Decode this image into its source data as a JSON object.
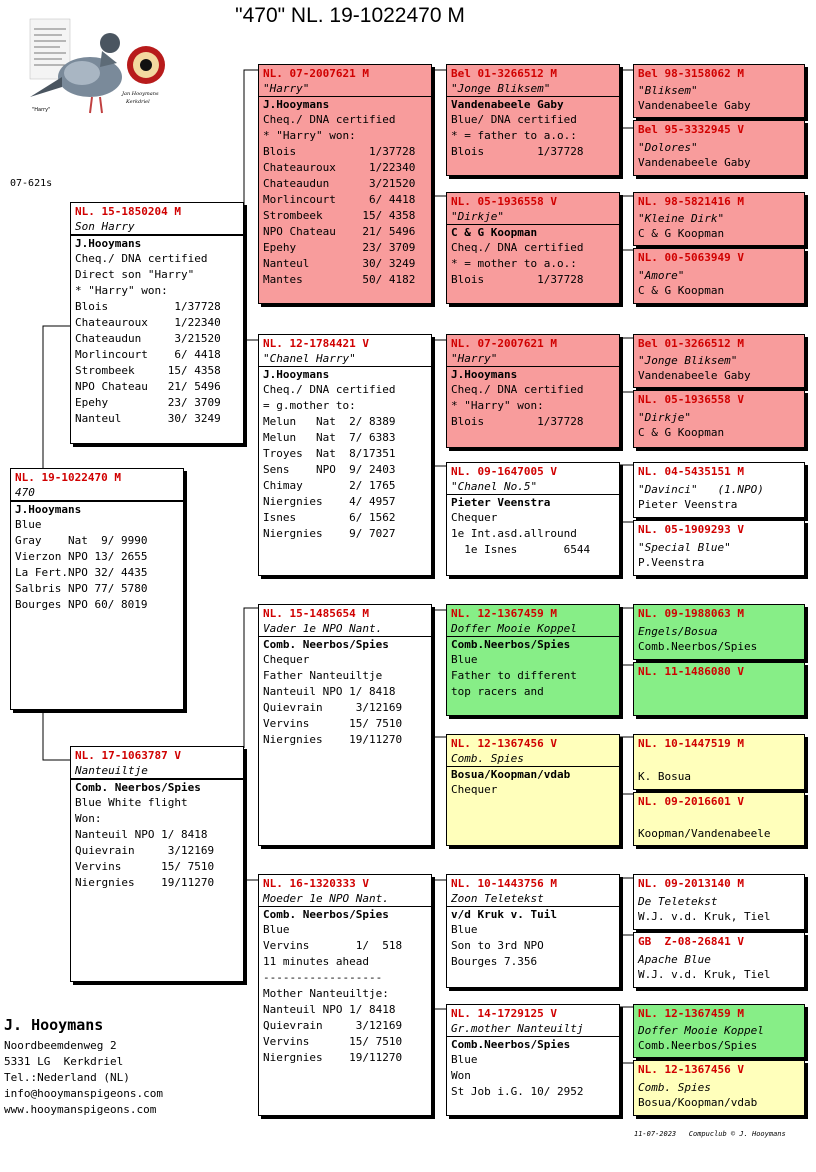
{
  "title": "\"470\"  NL. 19-1022470 M",
  "logo": {
    "caption_left": "\"Harry\"",
    "caption_right1": "Jan Hooymans",
    "caption_right2": "Kerkdriel"
  },
  "code": "07-621s",
  "cards": [
    {
      "ring": "NL. 19-1022470 M",
      "name": "470",
      "owner": "J.Hooymans",
      "lines": [
        "Blue",
        "Gray    Nat  9/ 9990",
        "Vierzon NPO 13/ 2655",
        "La Fert.NPO 32/ 4435",
        "Salbris NPO 77/ 5780",
        "Bourges NPO 60/ 8019"
      ]
    },
    {
      "ring": "NL. 15-1850204 M",
      "name": "Son Harry",
      "owner": "J.Hooymans",
      "lines": [
        "Cheq./ DNA certified",
        "Direct son \"Harry\"",
        "* \"Harry\" won:",
        "Blois          1/37728",
        "Chateauroux    1/22340",
        "Chateaudun     3/21520",
        "Morlincourt    6/ 4418",
        "Strombeek     15/ 4358",
        "NPO Chateau   21/ 5496",
        "Epehy         23/ 3709",
        "Nanteul       30/ 3249"
      ]
    },
    {
      "ring": "NL. 17-1063787 V",
      "name": "Nanteuiltje",
      "owner": "Comb. Neerbos/Spies",
      "lines": [
        "Blue White flight",
        "Won:",
        "Nanteuil NPO 1/ 8418",
        "Quievrain     3/12169",
        "Vervins      15/ 7510",
        "Niergnies    19/11270"
      ]
    },
    {
      "ring": "NL. 07-2007621 M",
      "name": "\"Harry\"",
      "owner": "J.Hooymans",
      "lines": [
        "Cheq./ DNA certified",
        "* \"Harry\" won:",
        "Blois           1/37728",
        "Chateauroux     1/22340",
        "Chateaudun      3/21520",
        "Morlincourt     6/ 4418",
        "Strombeek      15/ 4358",
        "NPO Chateau    21/ 5496",
        "Epehy          23/ 3709",
        "Nanteul        30/ 3249",
        "Mantes         50/ 4182"
      ]
    },
    {
      "ring": "NL. 12-1784421 V",
      "name": "\"Chanel Harry\"",
      "owner": "J.Hooymans",
      "lines": [
        "Cheq./ DNA certified",
        "= g.mother to:",
        "Melun   Nat  2/ 8389",
        "Melun   Nat  7/ 6383",
        "Troyes  Nat  8/17351",
        "Sens    NPO  9/ 2403",
        "Chimay       2/ 1765",
        "Niergnies    4/ 4957",
        "Isnes        6/ 1562",
        "Niergnies    9/ 7027"
      ]
    },
    {
      "ring": "NL. 15-1485654 M",
      "name": "Vader 1e NPO Nant.",
      "owner": "Comb. Neerbos/Spies",
      "lines": [
        "Chequer",
        "Father Nanteuiltje",
        "Nanteuil NPO 1/ 8418",
        "Quievrain     3/12169",
        "Vervins      15/ 7510",
        "Niergnies    19/11270"
      ]
    },
    {
      "ring": "NL. 16-1320333 V",
      "name": "Moeder 1e NPO Nant.",
      "owner": "Comb. Neerbos/Spies",
      "lines": [
        "Blue",
        "Vervins       1/  518",
        "11 minutes ahead",
        "------------------",
        "Mother Nanteuiltje:",
        "Nanteuil NPO 1/ 8418",
        "Quievrain     3/12169",
        "Vervins      15/ 7510",
        "Niergnies    19/11270"
      ]
    },
    {
      "ring": "Bel 01-3266512 M",
      "name": "\"Jonge Bliksem\"",
      "owner": "Vandenabeele Gaby",
      "lines": [
        "Blue/ DNA certified",
        "* = father to a.o.:",
        "Blois        1/37728"
      ]
    },
    {
      "ring": "NL. 05-1936558 V",
      "name": "\"Dirkje\"",
      "owner": "C & G Koopman",
      "lines": [
        "Cheq./ DNA certified",
        "* = mother to a.o.:",
        "Blois        1/37728"
      ]
    },
    {
      "ring": "NL. 07-2007621 M",
      "name": "\"Harry\"",
      "owner": "J.Hooymans",
      "lines": [
        "Cheq./ DNA certified",
        "* \"Harry\" won:",
        "Blois        1/37728"
      ]
    },
    {
      "ring": "NL. 09-1647005 V",
      "name": "\"Chanel No.5\"",
      "owner": "Pieter Veenstra",
      "lines": [
        "Chequer",
        "1e Int.asd.allround",
        "  1e Isnes       6544"
      ]
    },
    {
      "ring": "NL. 12-1367459 M",
      "name": "Doffer Mooie Koppel",
      "owner": "Comb.Neerbos/Spies",
      "lines": [
        "Blue",
        "Father to different",
        "top racers and"
      ]
    },
    {
      "ring": "NL. 12-1367456 V",
      "name": "Comb. Spies",
      "owner": "Bosua/Koopman/vdab",
      "lines": [
        "Chequer"
      ]
    },
    {
      "ring": "NL. 10-1443756 M",
      "name": "Zoon Teletekst",
      "owner": "v/d Kruk v. Tuil",
      "lines": [
        "Blue",
        "Son to 3rd NPO",
        "Bourges 7.356"
      ]
    },
    {
      "ring": "NL. 14-1729125 V",
      "name": "Gr.mother Nanteuiltj",
      "owner": "Comb.Neerbos/Spies",
      "lines": [
        "Blue",
        "Won",
        "St Job i.G. 10/ 2952"
      ]
    },
    {
      "ring": "Bel 98-3158062 M",
      "name": "\"Bliksem\"",
      "owner": "Vandenabeele Gaby",
      "lines": []
    },
    {
      "ring": "Bel 95-3332945 V",
      "name": "\"Dolores\"",
      "owner": "Vandenabeele Gaby",
      "lines": []
    },
    {
      "ring": "NL. 98-5821416 M",
      "name": "\"Kleine Dirk\"",
      "owner": "C & G Koopman",
      "lines": []
    },
    {
      "ring": "NL. 00-5063949 V",
      "name": "\"Amore\"",
      "owner": "C & G Koopman",
      "lines": []
    },
    {
      "ring": "Bel 01-3266512 M",
      "name": "\"Jonge Bliksem\"",
      "owner": "Vandenabeele Gaby",
      "lines": []
    },
    {
      "ring": "NL. 05-1936558 V",
      "name": "\"Dirkje\"",
      "owner": "C & G Koopman",
      "lines": []
    },
    {
      "ring": "NL. 04-5435151 M",
      "name": "\"Davinci\"   (1.NPO)",
      "owner": "Pieter Veenstra",
      "lines": []
    },
    {
      "ring": "NL. 05-1909293 V",
      "name": "\"Special Blue\"",
      "owner": "P.Veenstra",
      "lines": []
    },
    {
      "ring": "NL. 09-1988063 M",
      "name": "Engels/Bosua",
      "owner": "Comb.Neerbos/Spies",
      "lines": []
    },
    {
      "ring": "NL. 11-1486080 V",
      "name": "",
      "owner": "",
      "lines": []
    },
    {
      "ring": "NL. 10-1447519 M",
      "name": "",
      "owner": "K. Bosua",
      "lines": []
    },
    {
      "ring": "NL. 09-2016601 V",
      "name": "",
      "owner": "Koopman/Vandenabeele",
      "lines": []
    },
    {
      "ring": "NL. 09-2013140 M",
      "name": "De Teletekst",
      "owner": "W.J. v.d. Kruk, Tiel",
      "lines": []
    },
    {
      "ring": "GB  Z-08-26841 V",
      "name": "Apache Blue",
      "owner": "W.J. v.d. Kruk, Tiel",
      "lines": []
    },
    {
      "ring": "NL. 12-1367459 M",
      "name": "Doffer Mooie Koppel",
      "owner": "Comb.Neerbos/Spies",
      "lines": []
    },
    {
      "ring": "NL. 12-1367456 V",
      "name": "Comb. Spies",
      "owner": "Bosua/Koopman/vdab",
      "lines": []
    }
  ],
  "breeder": {
    "name": "J. Hooymans",
    "street": "Noordbeemdenweg 2",
    "city": "5331 LG  Kerkdriel",
    "tel": "Tel.:Nederland (NL)",
    "email": "info@hooymanspigeons.com",
    "web": "www.hooymanspigeons.com"
  },
  "footer": "11-07-2023   Compuclub © J. Hooymans"
}
